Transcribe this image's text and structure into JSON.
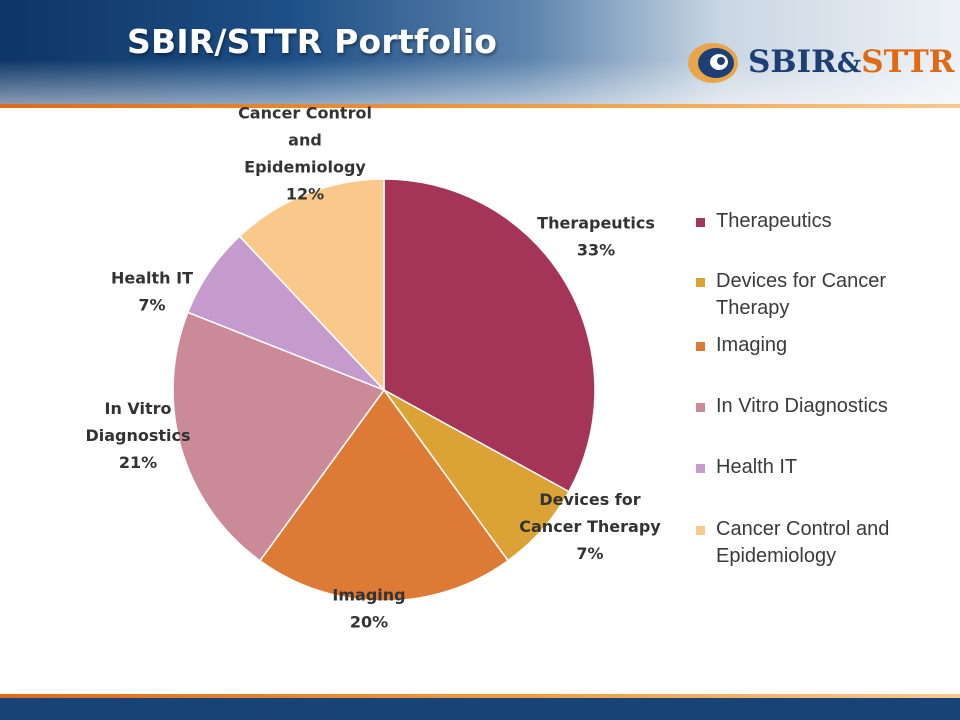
{
  "header": {
    "title": "SBIR/STTR Portfolio",
    "logo": {
      "part1": "SBIR",
      "amp": "&",
      "part2": "STTR"
    }
  },
  "colors": {
    "header_blue": "#174478",
    "accent_orange": "#e06a14"
  },
  "chart_data": {
    "type": "pie",
    "start_angle_deg": 90,
    "direction": "clockwise",
    "legend_position": "right",
    "slices": [
      {
        "name": "Therapeutics",
        "label_lines": [
          "Therapeutics",
          "33%"
        ],
        "value": 33,
        "color": "#a53558"
      },
      {
        "name": "Devices for Cancer Therapy",
        "label_lines": [
          "Devices for",
          "Cancer Therapy",
          "7%"
        ],
        "value": 7,
        "color": "#dba236"
      },
      {
        "name": "Imaging",
        "label_lines": [
          "Imaging",
          "20%"
        ],
        "value": 20,
        "color": "#dd7a35"
      },
      {
        "name": "In Vitro Diagnostics",
        "label_lines": [
          "In Vitro",
          "Diagnostics",
          "21%"
        ],
        "value": 21,
        "color": "#cb8a98"
      },
      {
        "name": "Health IT",
        "label_lines": [
          "Health IT",
          "7%"
        ],
        "value": 7,
        "color": "#c49bcc"
      },
      {
        "name": "Cancer Control and Epidemiology",
        "label_lines": [
          "Cancer Control",
          "and",
          "Epidemiology",
          "12%"
        ],
        "value": 12,
        "color": "#f9c98c"
      }
    ]
  },
  "legend": [
    {
      "label": "Therapeutics",
      "color": "#a53558"
    },
    {
      "label": "Devices for Cancer Therapy",
      "color": "#dba236"
    },
    {
      "label": "Imaging",
      "color": "#dd7a35"
    },
    {
      "label": "In Vitro Diagnostics",
      "color": "#cb8a98"
    },
    {
      "label": "Health IT",
      "color": "#c49bcc"
    },
    {
      "label": "Cancer Control and Epidemiology",
      "color": "#f9c98c"
    }
  ]
}
